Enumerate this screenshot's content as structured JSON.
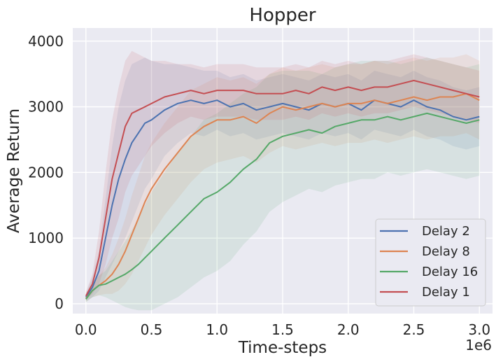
{
  "chart_data": {
    "type": "line",
    "title": "Hopper",
    "xlabel": "Time-steps",
    "ylabel": "Average Return",
    "x_offset_label": "1e6",
    "xlim": [
      -0.1,
      3.1
    ],
    "ylim": [
      -150,
      4200
    ],
    "xticks": [
      0.0,
      0.5,
      1.0,
      1.5,
      2.0,
      2.5,
      3.0
    ],
    "xtick_labels": [
      "0.0",
      "0.5",
      "1.0",
      "1.5",
      "2.0",
      "2.5",
      "3.0"
    ],
    "yticks": [
      0,
      1000,
      2000,
      3000,
      4000
    ],
    "ytick_labels": [
      "0",
      "1000",
      "2000",
      "3000",
      "4000"
    ],
    "grid": true,
    "legend_position": "lower-right",
    "x": [
      0.0,
      0.05,
      0.1,
      0.15,
      0.2,
      0.25,
      0.3,
      0.35,
      0.4,
      0.45,
      0.5,
      0.6,
      0.7,
      0.8,
      0.9,
      1.0,
      1.1,
      1.2,
      1.3,
      1.4,
      1.5,
      1.6,
      1.7,
      1.8,
      1.9,
      2.0,
      2.1,
      2.2,
      2.3,
      2.4,
      2.5,
      2.6,
      2.7,
      2.8,
      2.9,
      3.0
    ],
    "series": [
      {
        "name": "Delay 2",
        "color": "#4c72b0",
        "values": [
          100,
          250,
          500,
          1000,
          1500,
          1900,
          2200,
          2450,
          2600,
          2750,
          2800,
          2950,
          3050,
          3100,
          3050,
          3100,
          3000,
          3050,
          2950,
          3000,
          3050,
          3000,
          2950,
          3050,
          3000,
          3050,
          2950,
          3100,
          3050,
          3000,
          3100,
          3000,
          2950,
          2850,
          2800,
          2850
        ],
        "band": [
          60,
          150,
          300,
          600,
          900,
          1100,
          1200,
          1200,
          1100,
          1000,
          900,
          700,
          600,
          500,
          500,
          450,
          450,
          450,
          450,
          450,
          450,
          450,
          450,
          450,
          450,
          450,
          450,
          450,
          450,
          450,
          450,
          450,
          450,
          450,
          450,
          450
        ]
      },
      {
        "name": "Delay 8",
        "color": "#dd8452",
        "values": [
          80,
          200,
          280,
          350,
          450,
          600,
          800,
          1050,
          1300,
          1550,
          1750,
          2050,
          2300,
          2550,
          2700,
          2800,
          2800,
          2850,
          2750,
          2900,
          3000,
          2950,
          3000,
          3050,
          3000,
          3050,
          3050,
          3100,
          3050,
          3100,
          3150,
          3100,
          3150,
          3150,
          3200,
          3100
        ],
        "band": [
          50,
          100,
          150,
          200,
          300,
          400,
          500,
          600,
          650,
          700,
          700,
          700,
          700,
          700,
          650,
          650,
          600,
          600,
          600,
          600,
          600,
          600,
          600,
          600,
          600,
          600,
          600,
          600,
          600,
          600,
          600,
          600,
          600,
          600,
          600,
          600
        ]
      },
      {
        "name": "Delay 16",
        "color": "#55a868",
        "values": [
          70,
          200,
          280,
          300,
          350,
          400,
          450,
          520,
          600,
          700,
          800,
          1000,
          1200,
          1400,
          1600,
          1700,
          1850,
          2050,
          2200,
          2450,
          2550,
          2600,
          2650,
          2600,
          2700,
          2750,
          2800,
          2800,
          2850,
          2800,
          2850,
          2900,
          2850,
          2800,
          2750,
          2800
        ],
        "band": [
          50,
          100,
          150,
          200,
          300,
          400,
          500,
          600,
          700,
          800,
          900,
          1000,
          1100,
          1150,
          1200,
          1200,
          1200,
          1150,
          1100,
          1050,
          1000,
          950,
          900,
          900,
          900,
          900,
          900,
          900,
          850,
          850,
          850,
          850,
          850,
          850,
          850,
          850
        ]
      },
      {
        "name": "Delay 1",
        "color": "#c44e52",
        "values": [
          120,
          300,
          700,
          1300,
          1900,
          2300,
          2700,
          2900,
          2950,
          3000,
          3050,
          3150,
          3200,
          3250,
          3200,
          3250,
          3250,
          3250,
          3200,
          3200,
          3200,
          3250,
          3200,
          3300,
          3250,
          3300,
          3250,
          3300,
          3300,
          3350,
          3400,
          3350,
          3300,
          3250,
          3200,
          3150
        ],
        "band": [
          60,
          150,
          400,
          700,
          900,
          1000,
          1000,
          950,
          850,
          750,
          650,
          550,
          450,
          400,
          400,
          400,
          400,
          400,
          400,
          400,
          400,
          400,
          400,
          400,
          400,
          400,
          400,
          400,
          400,
          400,
          400,
          400,
          400,
          400,
          400,
          400
        ]
      }
    ]
  }
}
